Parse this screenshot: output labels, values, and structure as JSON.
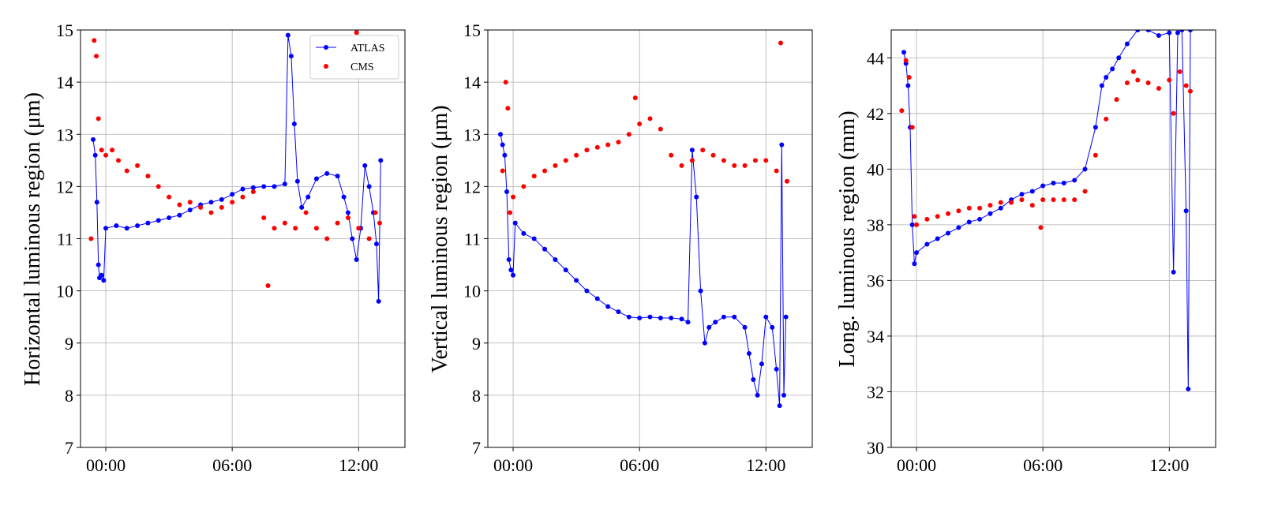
{
  "figure": {
    "background": "#ffffff",
    "colors": {
      "ATLAS": "#0000ff",
      "CMS": "#ff0000",
      "grid": "#b0b0b0"
    },
    "legend": {
      "placement": "upper-right of first panel",
      "entries": [
        "ATLAS",
        "CMS"
      ]
    }
  },
  "chart_data": [
    {
      "type": "scatter",
      "title": "",
      "xlabel": "",
      "ylabel": "Horizontal luminous region (μm)",
      "x_unit": "hours",
      "xlim": [
        -1.2,
        14.2
      ],
      "ylim": [
        7,
        15
      ],
      "xticks": [
        0,
        6,
        12
      ],
      "xtick_labels": [
        "00:00",
        "06:00",
        "12:00"
      ],
      "yticks": [
        7,
        8,
        9,
        10,
        11,
        12,
        13,
        14,
        15
      ],
      "grid": true,
      "legend": true,
      "series": [
        {
          "name": "ATLAS",
          "style": "line+markers",
          "points": [
            [
              -0.6,
              12.9
            ],
            [
              -0.5,
              12.6
            ],
            [
              -0.42,
              11.7
            ],
            [
              -0.35,
              10.5
            ],
            [
              -0.3,
              10.25
            ],
            [
              -0.2,
              10.3
            ],
            [
              -0.1,
              10.2
            ],
            [
              0.0,
              11.2
            ],
            [
              0.5,
              11.25
            ],
            [
              1.0,
              11.2
            ],
            [
              1.5,
              11.25
            ],
            [
              2.0,
              11.3
            ],
            [
              2.5,
              11.35
            ],
            [
              3.0,
              11.4
            ],
            [
              3.5,
              11.45
            ],
            [
              4.0,
              11.55
            ],
            [
              4.5,
              11.65
            ],
            [
              5.0,
              11.7
            ],
            [
              5.5,
              11.75
            ],
            [
              6.0,
              11.85
            ],
            [
              6.5,
              11.95
            ],
            [
              7.0,
              11.98
            ],
            [
              7.5,
              12.0
            ],
            [
              8.0,
              12.0
            ],
            [
              8.5,
              12.05
            ],
            [
              8.65,
              14.9
            ],
            [
              8.8,
              14.5
            ],
            [
              8.95,
              13.2
            ],
            [
              9.1,
              12.1
            ],
            [
              9.3,
              11.6
            ],
            [
              9.6,
              11.8
            ],
            [
              10.0,
              12.15
            ],
            [
              10.5,
              12.25
            ],
            [
              11.0,
              12.2
            ],
            [
              11.3,
              11.8
            ],
            [
              11.5,
              11.5
            ],
            [
              11.7,
              11.0
            ],
            [
              11.9,
              10.6
            ],
            [
              12.1,
              11.2
            ],
            [
              12.3,
              12.4
            ],
            [
              12.5,
              12.0
            ],
            [
              12.7,
              11.5
            ],
            [
              12.85,
              10.9
            ],
            [
              12.95,
              9.8
            ],
            [
              13.05,
              12.5
            ]
          ]
        },
        {
          "name": "CMS",
          "style": "markers",
          "points": [
            [
              -0.7,
              11.0
            ],
            [
              -0.55,
              14.8
            ],
            [
              -0.45,
              14.5
            ],
            [
              -0.35,
              13.3
            ],
            [
              -0.2,
              12.7
            ],
            [
              0.0,
              12.6
            ],
            [
              0.3,
              12.7
            ],
            [
              0.6,
              12.5
            ],
            [
              1.0,
              12.3
            ],
            [
              1.5,
              12.4
            ],
            [
              2.0,
              12.2
            ],
            [
              2.5,
              12.0
            ],
            [
              3.0,
              11.8
            ],
            [
              3.5,
              11.65
            ],
            [
              4.0,
              11.7
            ],
            [
              4.5,
              11.6
            ],
            [
              5.0,
              11.5
            ],
            [
              5.5,
              11.6
            ],
            [
              6.0,
              11.7
            ],
            [
              6.5,
              11.8
            ],
            [
              7.0,
              11.9
            ],
            [
              7.5,
              11.4
            ],
            [
              8.0,
              11.2
            ],
            [
              8.5,
              11.3
            ],
            [
              9.0,
              11.2
            ],
            [
              9.5,
              11.5
            ],
            [
              10.0,
              11.2
            ],
            [
              10.5,
              11.0
            ],
            [
              11.0,
              11.3
            ],
            [
              11.5,
              11.4
            ],
            [
              12.0,
              11.2
            ],
            [
              12.5,
              11.0
            ],
            [
              12.8,
              11.5
            ],
            [
              13.0,
              11.3
            ],
            [
              11.9,
              14.95
            ],
            [
              7.7,
              10.1
            ]
          ]
        }
      ]
    },
    {
      "type": "scatter",
      "title": "",
      "xlabel": "",
      "ylabel": "Vertical luminous region (μm)",
      "x_unit": "hours",
      "xlim": [
        -1.2,
        14.2
      ],
      "ylim": [
        7,
        15
      ],
      "xticks": [
        0,
        6,
        12
      ],
      "xtick_labels": [
        "00:00",
        "06:00",
        "12:00"
      ],
      "yticks": [
        7,
        8,
        9,
        10,
        11,
        12,
        13,
        14,
        15
      ],
      "grid": true,
      "legend": false,
      "series": [
        {
          "name": "ATLAS",
          "style": "line+markers",
          "points": [
            [
              -0.6,
              13.0
            ],
            [
              -0.5,
              12.8
            ],
            [
              -0.4,
              12.6
            ],
            [
              -0.3,
              11.9
            ],
            [
              -0.2,
              10.6
            ],
            [
              -0.1,
              10.4
            ],
            [
              0.0,
              10.3
            ],
            [
              0.1,
              11.3
            ],
            [
              0.5,
              11.1
            ],
            [
              1.0,
              11.0
            ],
            [
              1.5,
              10.8
            ],
            [
              2.0,
              10.6
            ],
            [
              2.5,
              10.4
            ],
            [
              3.0,
              10.2
            ],
            [
              3.5,
              10.0
            ],
            [
              4.0,
              9.85
            ],
            [
              4.5,
              9.7
            ],
            [
              5.0,
              9.6
            ],
            [
              5.5,
              9.5
            ],
            [
              6.0,
              9.48
            ],
            [
              6.5,
              9.5
            ],
            [
              7.0,
              9.48
            ],
            [
              7.5,
              9.48
            ],
            [
              8.0,
              9.46
            ],
            [
              8.3,
              9.4
            ],
            [
              8.5,
              12.7
            ],
            [
              8.7,
              11.8
            ],
            [
              8.9,
              10.0
            ],
            [
              9.1,
              9.0
            ],
            [
              9.3,
              9.3
            ],
            [
              9.6,
              9.4
            ],
            [
              10.0,
              9.5
            ],
            [
              10.5,
              9.5
            ],
            [
              11.0,
              9.3
            ],
            [
              11.2,
              8.8
            ],
            [
              11.4,
              8.3
            ],
            [
              11.6,
              8.0
            ],
            [
              11.8,
              8.6
            ],
            [
              12.0,
              9.5
            ],
            [
              12.3,
              9.3
            ],
            [
              12.5,
              8.5
            ],
            [
              12.65,
              7.8
            ],
            [
              12.75,
              12.8
            ],
            [
              12.85,
              8.0
            ],
            [
              12.95,
              9.5
            ]
          ]
        },
        {
          "name": "CMS",
          "style": "markers",
          "points": [
            [
              -0.5,
              12.3
            ],
            [
              -0.35,
              14.0
            ],
            [
              -0.25,
              13.5
            ],
            [
              -0.15,
              11.5
            ],
            [
              0.0,
              11.8
            ],
            [
              0.5,
              12.0
            ],
            [
              1.0,
              12.2
            ],
            [
              1.5,
              12.3
            ],
            [
              2.0,
              12.4
            ],
            [
              2.5,
              12.5
            ],
            [
              3.0,
              12.6
            ],
            [
              3.5,
              12.7
            ],
            [
              4.0,
              12.75
            ],
            [
              4.5,
              12.8
            ],
            [
              5.0,
              12.85
            ],
            [
              5.5,
              13.0
            ],
            [
              5.8,
              13.7
            ],
            [
              6.0,
              13.2
            ],
            [
              6.5,
              13.3
            ],
            [
              7.0,
              13.1
            ],
            [
              7.5,
              12.6
            ],
            [
              8.0,
              12.4
            ],
            [
              8.5,
              12.5
            ],
            [
              9.0,
              12.7
            ],
            [
              9.5,
              12.6
            ],
            [
              10.0,
              12.5
            ],
            [
              10.5,
              12.4
            ],
            [
              11.0,
              12.4
            ],
            [
              11.5,
              12.5
            ],
            [
              12.0,
              12.5
            ],
            [
              12.5,
              12.3
            ],
            [
              12.7,
              14.75
            ],
            [
              13.0,
              12.1
            ]
          ]
        }
      ]
    },
    {
      "type": "scatter",
      "title": "",
      "xlabel": "",
      "ylabel": "Long. luminous region (mm)",
      "x_unit": "hours",
      "xlim": [
        -1.2,
        14.2
      ],
      "ylim": [
        30,
        45
      ],
      "xticks": [
        0,
        6,
        12
      ],
      "xtick_labels": [
        "00:00",
        "06:00",
        "12:00"
      ],
      "yticks": [
        30,
        32,
        34,
        36,
        38,
        40,
        42,
        44
      ],
      "grid": true,
      "legend": false,
      "series": [
        {
          "name": "ATLAS",
          "style": "line+markers",
          "points": [
            [
              -0.6,
              44.2
            ],
            [
              -0.5,
              43.8
            ],
            [
              -0.4,
              43.0
            ],
            [
              -0.3,
              41.5
            ],
            [
              -0.2,
              38.0
            ],
            [
              -0.1,
              36.6
            ],
            [
              0.0,
              37.0
            ],
            [
              0.5,
              37.3
            ],
            [
              1.0,
              37.5
            ],
            [
              1.5,
              37.7
            ],
            [
              2.0,
              37.9
            ],
            [
              2.5,
              38.1
            ],
            [
              3.0,
              38.2
            ],
            [
              3.5,
              38.4
            ],
            [
              4.0,
              38.6
            ],
            [
              4.5,
              38.9
            ],
            [
              5.0,
              39.1
            ],
            [
              5.5,
              39.2
            ],
            [
              6.0,
              39.4
            ],
            [
              6.5,
              39.5
            ],
            [
              7.0,
              39.5
            ],
            [
              7.5,
              39.6
            ],
            [
              8.0,
              40.0
            ],
            [
              8.5,
              41.5
            ],
            [
              8.8,
              43.0
            ],
            [
              9.0,
              43.3
            ],
            [
              9.3,
              43.6
            ],
            [
              9.6,
              44.0
            ],
            [
              10.0,
              44.5
            ],
            [
              10.5,
              45.0
            ],
            [
              11.0,
              45.0
            ],
            [
              11.5,
              44.8
            ],
            [
              12.0,
              44.9
            ],
            [
              12.2,
              36.3
            ],
            [
              12.4,
              44.9
            ],
            [
              12.6,
              45.0
            ],
            [
              12.8,
              38.5
            ],
            [
              12.9,
              32.1
            ],
            [
              13.0,
              45.0
            ]
          ]
        },
        {
          "name": "CMS",
          "style": "markers",
          "points": [
            [
              -0.7,
              42.1
            ],
            [
              -0.5,
              43.9
            ],
            [
              -0.35,
              43.3
            ],
            [
              -0.2,
              41.5
            ],
            [
              -0.1,
              38.3
            ],
            [
              0.0,
              38.0
            ],
            [
              0.5,
              38.2
            ],
            [
              1.0,
              38.3
            ],
            [
              1.5,
              38.4
            ],
            [
              2.0,
              38.5
            ],
            [
              2.5,
              38.6
            ],
            [
              3.0,
              38.6
            ],
            [
              3.5,
              38.7
            ],
            [
              4.0,
              38.8
            ],
            [
              4.5,
              38.8
            ],
            [
              5.0,
              38.9
            ],
            [
              5.5,
              38.7
            ],
            [
              5.9,
              37.9
            ],
            [
              6.0,
              38.9
            ],
            [
              6.5,
              38.9
            ],
            [
              7.0,
              38.9
            ],
            [
              7.5,
              38.9
            ],
            [
              8.0,
              39.2
            ],
            [
              8.5,
              40.5
            ],
            [
              9.0,
              41.8
            ],
            [
              9.5,
              42.5
            ],
            [
              10.0,
              43.1
            ],
            [
              10.3,
              43.5
            ],
            [
              10.5,
              43.2
            ],
            [
              11.0,
              43.1
            ],
            [
              11.5,
              42.9
            ],
            [
              12.0,
              43.2
            ],
            [
              12.2,
              42.0
            ],
            [
              12.5,
              43.5
            ],
            [
              12.8,
              43.0
            ],
            [
              13.0,
              42.8
            ]
          ]
        }
      ]
    }
  ]
}
